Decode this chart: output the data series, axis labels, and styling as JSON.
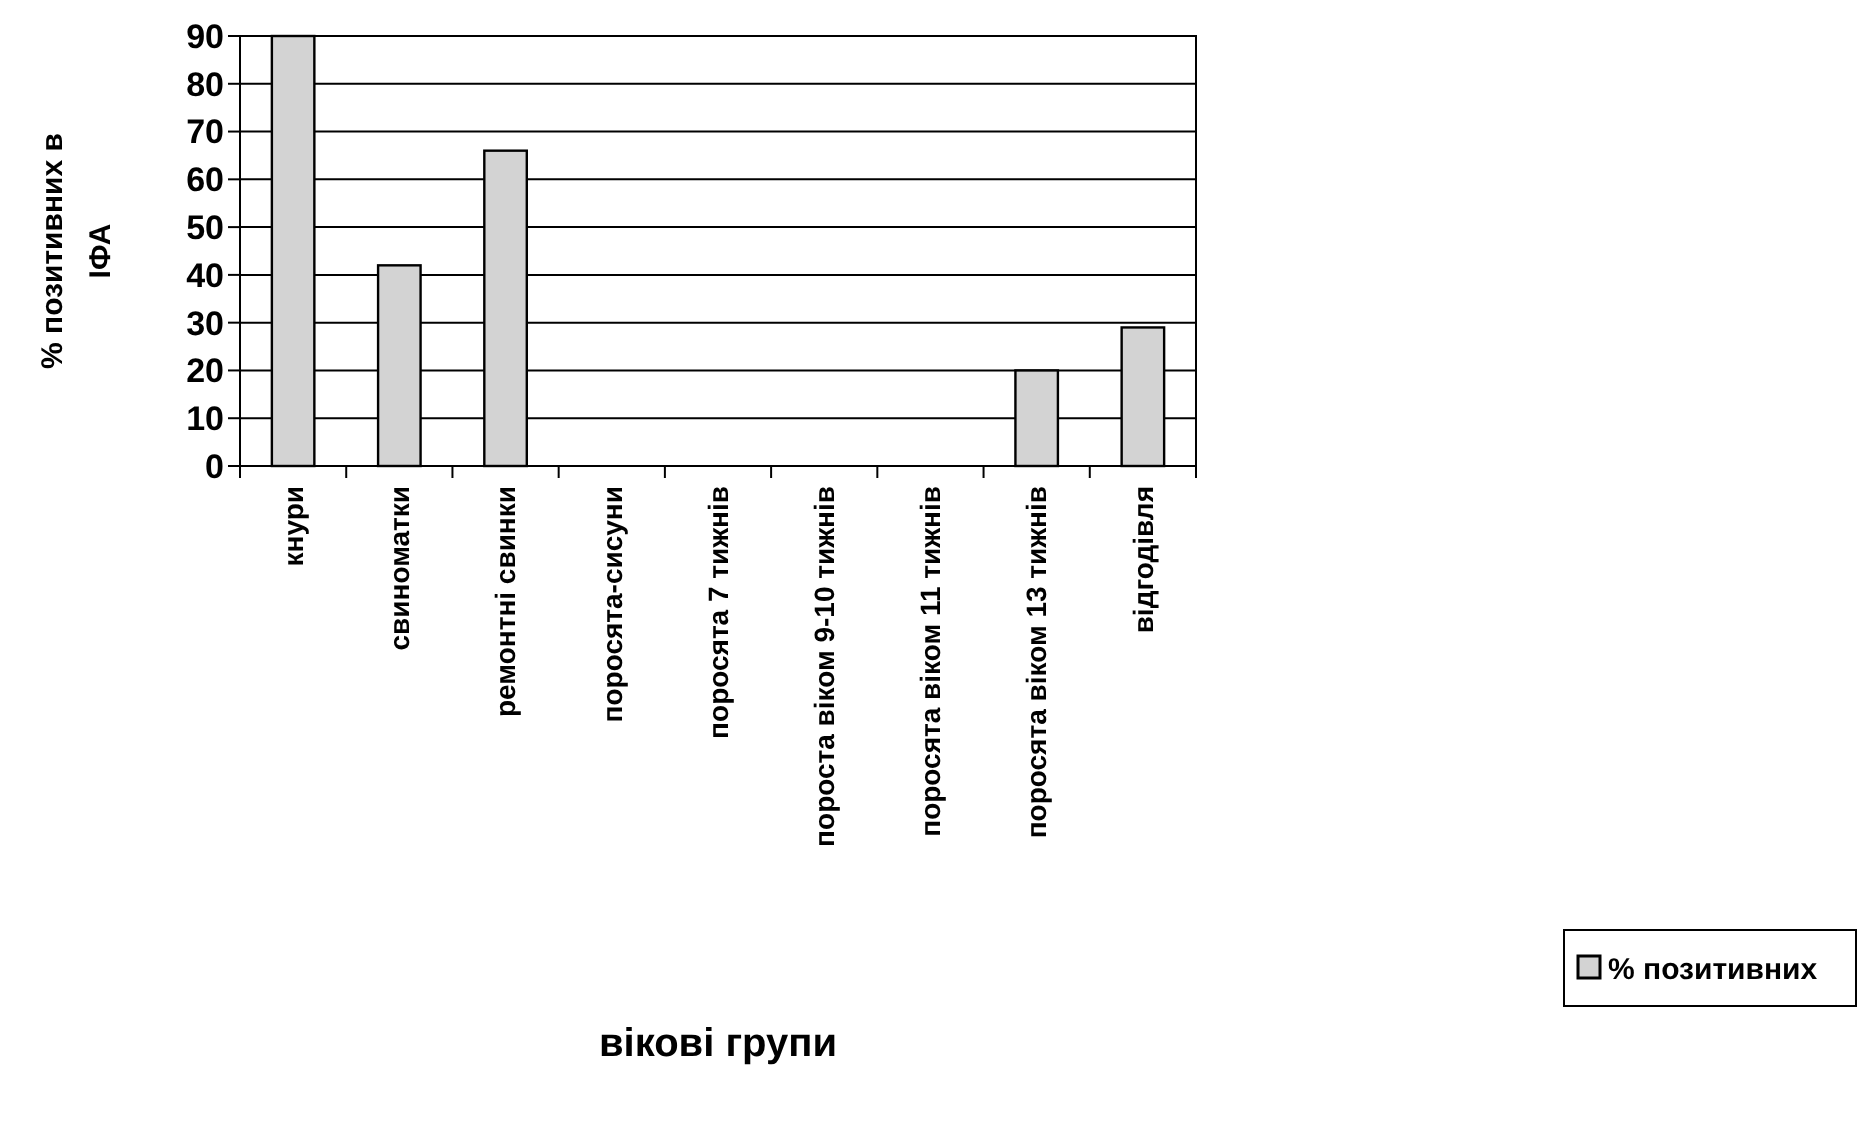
{
  "chart_data": {
    "type": "bar",
    "xlabel": "вікові групи",
    "ylabel": "% позитивних в ІФА",
    "categories": [
      "кнури",
      "свиноматки",
      "ремонтні свинки",
      "поросята-сисуни",
      "поросята 7 тижнів",
      "пороста віком 9-10 тижнів",
      "поросята віком 11 тижнів",
      "поросята віком 13 тижнів",
      "відгодівля"
    ],
    "series": [
      {
        "name": "% позитивних",
        "color": "#d3d3d3",
        "values": [
          90,
          42,
          66,
          0,
          0,
          0,
          0,
          20,
          29
        ]
      }
    ],
    "ylim": [
      0,
      90
    ],
    "yticks": [
      0,
      10,
      20,
      30,
      40,
      50,
      60,
      70,
      80,
      90
    ],
    "grid": "y",
    "legend": "right"
  }
}
